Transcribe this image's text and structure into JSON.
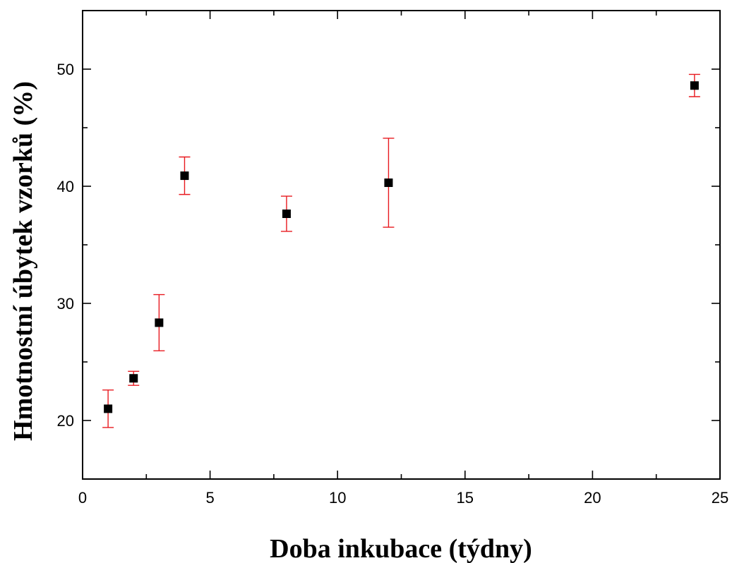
{
  "chart_data": {
    "type": "scatter",
    "xlabel": "Doba inkubace (týdny)",
    "ylabel": "Hmotnostní úbytek vzorků (%)",
    "xlim": [
      0,
      25
    ],
    "ylim": [
      15,
      55
    ],
    "xticks": [
      0,
      5,
      10,
      15,
      20,
      25
    ],
    "yticks": [
      20,
      30,
      40,
      50
    ],
    "grid": false,
    "marker": "square",
    "marker_color": "#000000",
    "error_bar_color": "#e8191f",
    "series": [
      {
        "points": [
          {
            "x": 1,
            "y": 21.0,
            "err_low": 1.6,
            "err_high": 1.6
          },
          {
            "x": 2,
            "y": 23.6,
            "err_low": 0.6,
            "err_high": 0.6
          },
          {
            "x": 3,
            "y": 28.35,
            "err_low": 2.4,
            "err_high": 2.4
          },
          {
            "x": 4,
            "y": 40.9,
            "err_low": 1.6,
            "err_high": 1.6
          },
          {
            "x": 8,
            "y": 37.65,
            "err_low": 1.5,
            "err_high": 1.5
          },
          {
            "x": 12,
            "y": 40.3,
            "err_low": 3.8,
            "err_high": 3.8
          },
          {
            "x": 24,
            "y": 48.6,
            "err_low": 0.95,
            "err_high": 0.95
          }
        ]
      }
    ]
  }
}
